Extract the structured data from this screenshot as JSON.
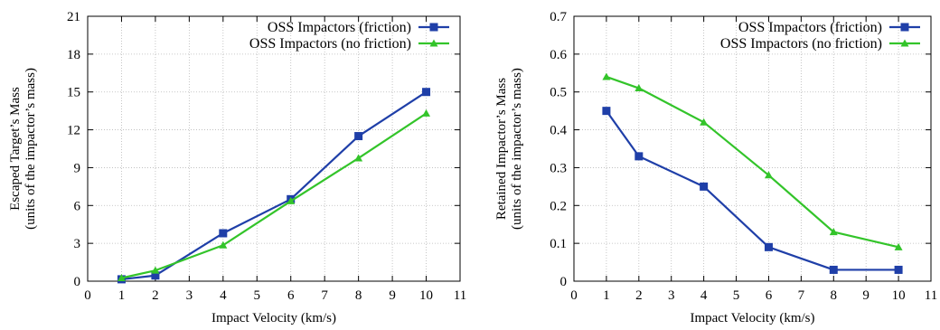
{
  "chart_data": [
    {
      "type": "line",
      "title": "",
      "xlabel": "Impact Velocity (km/s)",
      "ylabel_lines": [
        "Escaped Target’s Mass",
        "(units of the impactor’s mass)"
      ],
      "xlim": [
        0,
        11
      ],
      "ylim": [
        0,
        21
      ],
      "xticks": [
        0,
        1,
        2,
        3,
        4,
        5,
        6,
        7,
        8,
        9,
        10,
        11
      ],
      "yticks": [
        0,
        3,
        6,
        9,
        12,
        15,
        18,
        21
      ],
      "grid": true,
      "legend_position": "top-right",
      "series": [
        {
          "name": "OSS Impactors (friction)",
          "color": "#1f3fa8",
          "marker": "square",
          "x": [
            1,
            2,
            4,
            6,
            8,
            10
          ],
          "y": [
            0.15,
            0.45,
            3.8,
            6.5,
            11.5,
            15.0
          ]
        },
        {
          "name": "OSS Impactors (no friction)",
          "color": "#33c42a",
          "marker": "triangle",
          "x": [
            1,
            2,
            4,
            6,
            8,
            10
          ],
          "y": [
            0.25,
            0.85,
            2.85,
            6.35,
            9.75,
            13.3
          ]
        }
      ]
    },
    {
      "type": "line",
      "title": "",
      "xlabel": "Impact Velocity (km/s)",
      "ylabel_lines": [
        "Retained Impactor’s Mass",
        "(units of the impactor’s mass)"
      ],
      "xlim": [
        0,
        11
      ],
      "ylim": [
        0,
        0.7
      ],
      "xticks": [
        0,
        1,
        2,
        3,
        4,
        5,
        6,
        7,
        8,
        9,
        10,
        11
      ],
      "yticks": [
        0,
        0.1,
        0.2,
        0.3,
        0.4,
        0.5,
        0.6,
        0.7
      ],
      "grid": true,
      "legend_position": "top-right",
      "series": [
        {
          "name": "OSS Impactors (friction)",
          "color": "#1f3fa8",
          "marker": "square",
          "x": [
            1,
            2,
            4,
            6,
            8,
            10
          ],
          "y": [
            0.45,
            0.33,
            0.25,
            0.09,
            0.03,
            0.03
          ]
        },
        {
          "name": "OSS Impactors (no friction)",
          "color": "#33c42a",
          "marker": "triangle",
          "x": [
            1,
            2,
            4,
            6,
            8,
            10
          ],
          "y": [
            0.54,
            0.51,
            0.42,
            0.28,
            0.13,
            0.09
          ]
        }
      ]
    }
  ]
}
